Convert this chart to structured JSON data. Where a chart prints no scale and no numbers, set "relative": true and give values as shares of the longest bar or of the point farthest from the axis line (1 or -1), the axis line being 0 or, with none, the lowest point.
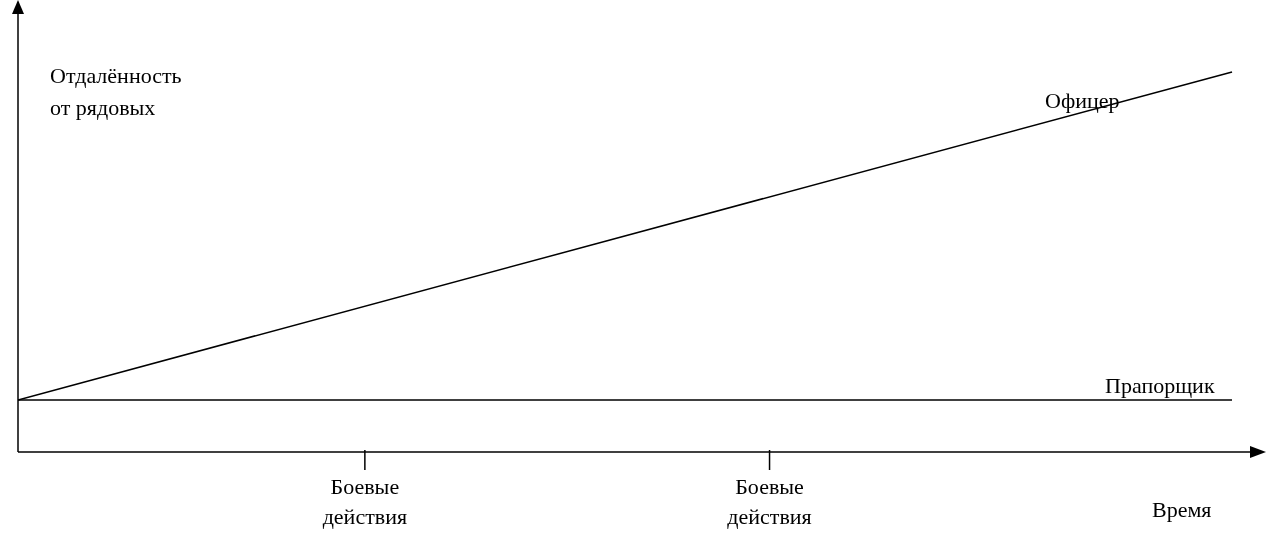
{
  "chart_data": {
    "type": "line",
    "relative": true,
    "ylabel": "Отдалённость от рядовых",
    "xlabel": "Время",
    "categories": [
      null,
      null,
      null,
      null,
      null,
      null,
      "Боевые действия",
      null,
      null,
      null,
      null,
      null,
      null,
      "Боевые действия",
      null,
      null,
      null,
      null,
      null,
      null,
      null,
      null
    ],
    "series": [
      {
        "name": "Офицер",
        "color": "#000000",
        "values": [
          0.137,
          null,
          null,
          null,
          null,
          null,
          null,
          null,
          null,
          null,
          null,
          null,
          null,
          null,
          null,
          null,
          null,
          null,
          null,
          null,
          null,
          1
        ]
      },
      {
        "name": "Прапорщик",
        "color": "#000000",
        "values": [
          0.137,
          null,
          null,
          null,
          null,
          null,
          null,
          null,
          null,
          null,
          null,
          null,
          null,
          null,
          null,
          null,
          null,
          null,
          null,
          null,
          null,
          0.137
        ]
      }
    ],
    "legend": false,
    "grid": false,
    "marker": "none",
    "line_style": "solid"
  }
}
